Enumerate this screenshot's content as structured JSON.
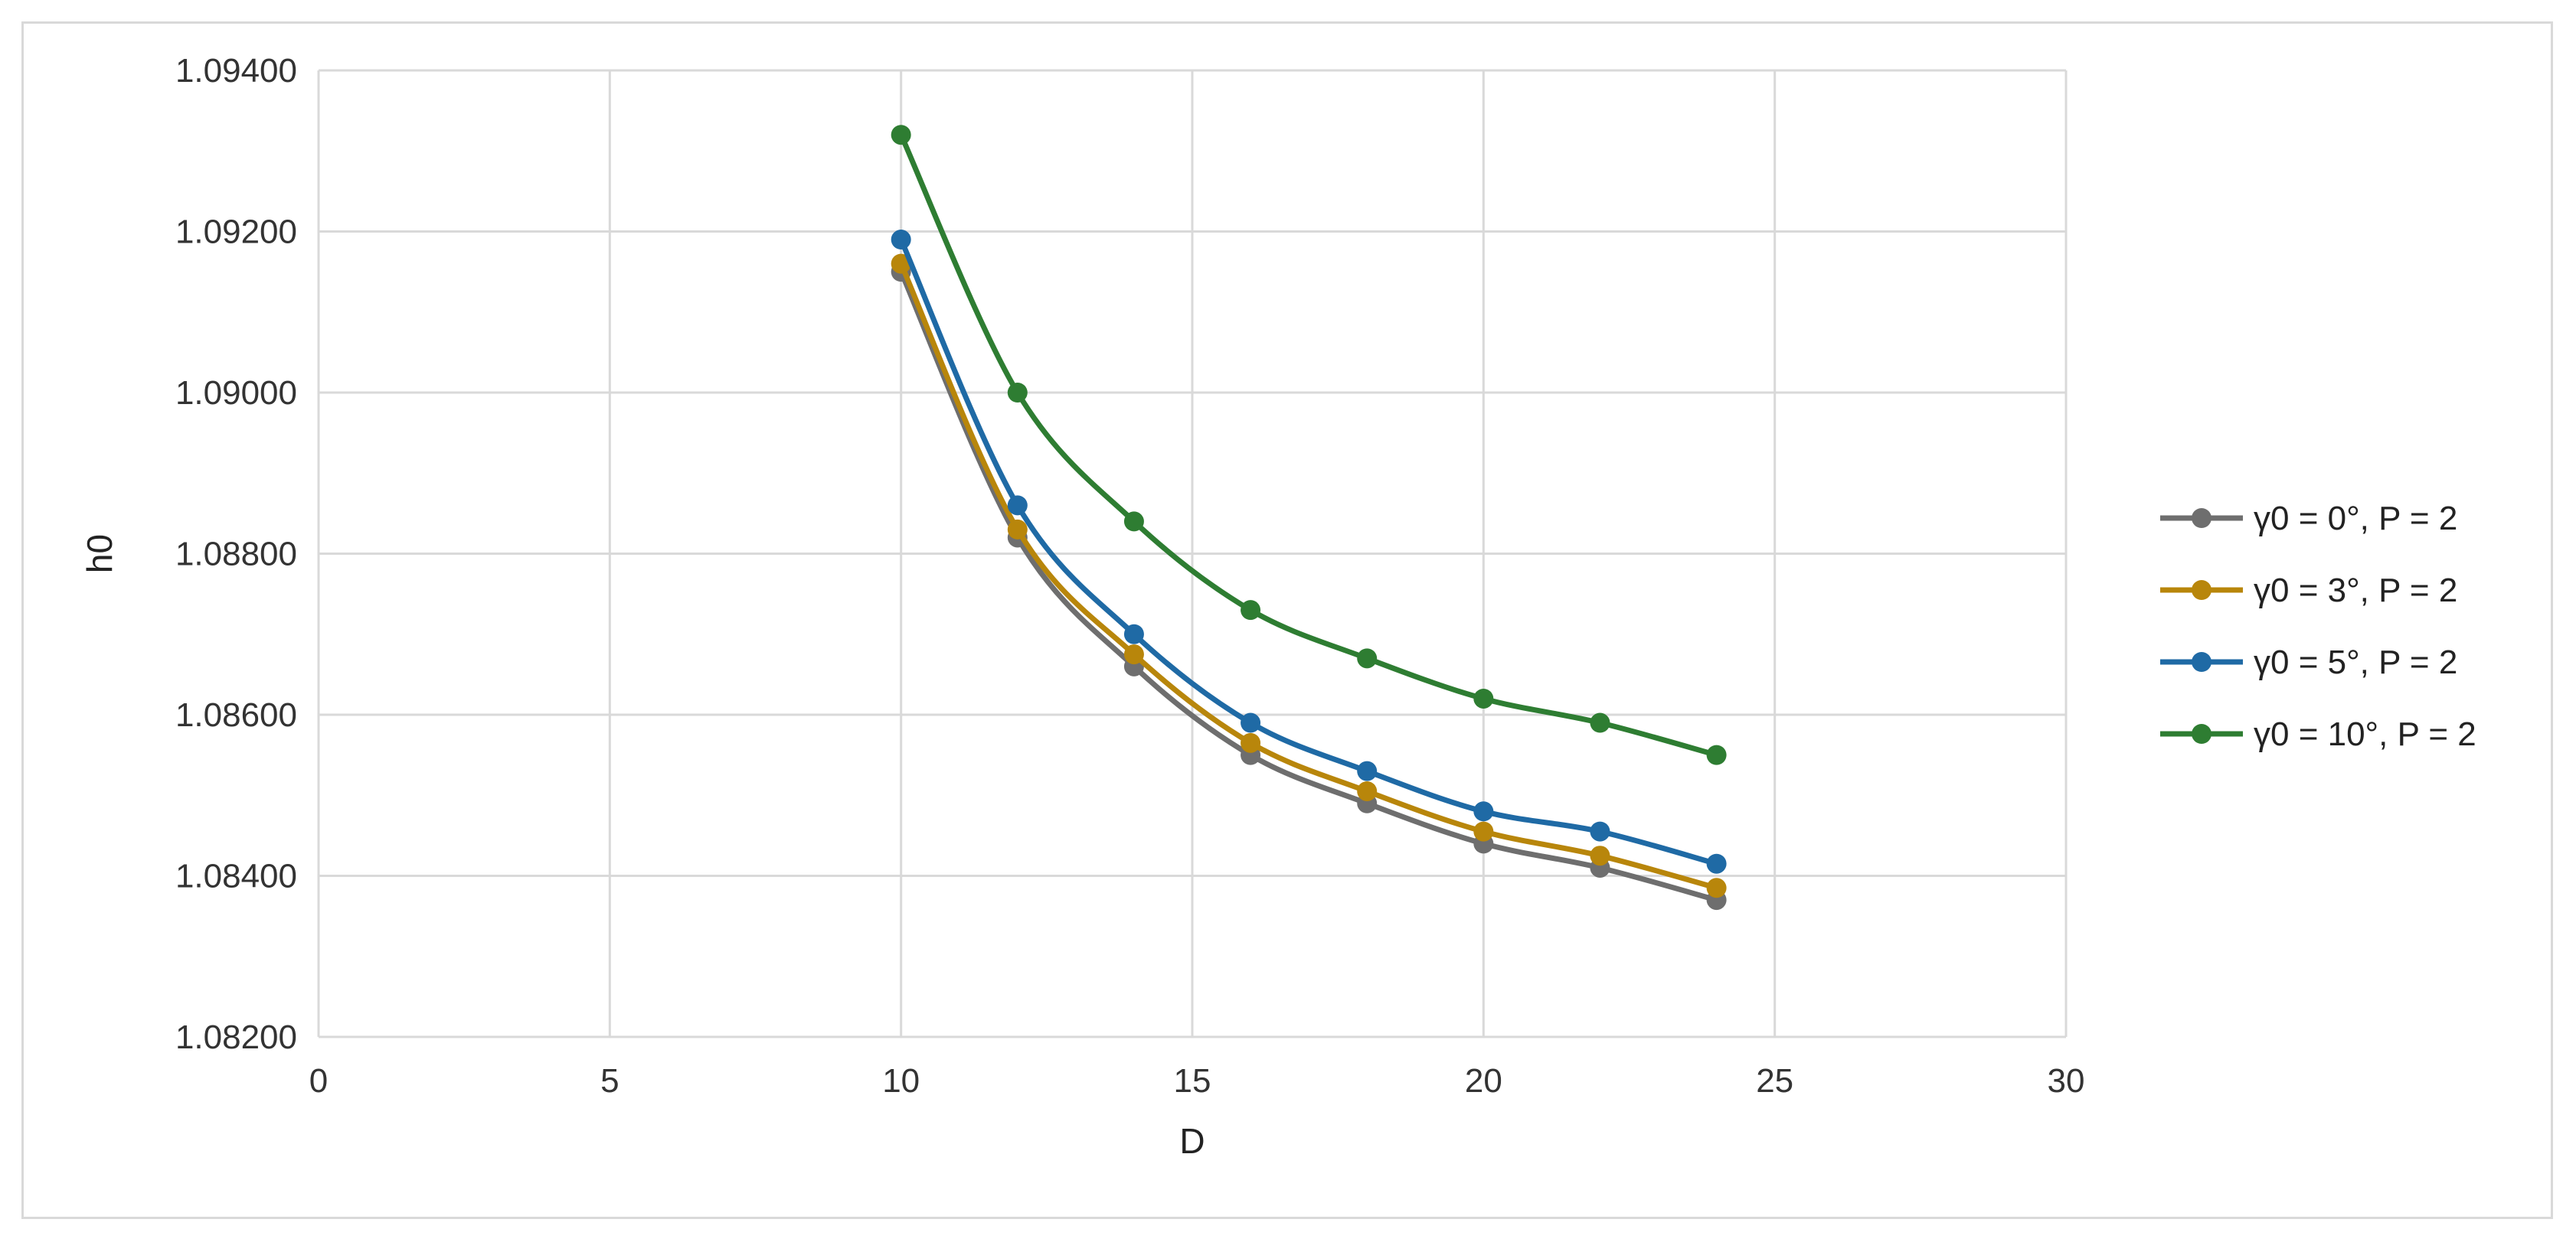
{
  "chart_data": {
    "type": "line",
    "title": "",
    "xlabel": "D",
    "ylabel": "h0",
    "xlim": [
      0,
      30
    ],
    "ylim": [
      1.082,
      1.094
    ],
    "x_ticks": [
      0,
      5,
      10,
      15,
      20,
      25,
      30
    ],
    "y_ticks": [
      1.082,
      1.084,
      1.086,
      1.088,
      1.09,
      1.092,
      1.094
    ],
    "x_tick_labels": [
      "0",
      "5",
      "10",
      "15",
      "20",
      "25",
      "30"
    ],
    "y_tick_labels": [
      "1.08200",
      "1.08400",
      "1.08600",
      "1.08800",
      "1.09000",
      "1.09200",
      "1.09400"
    ],
    "grid": true,
    "legend_position": "right",
    "smooth": true,
    "x": [
      10,
      12,
      14,
      16,
      18,
      20,
      22,
      24
    ],
    "series": [
      {
        "name": "γ0 = 0°, P = 2",
        "color": "#6e6e6e",
        "values": [
          1.0915,
          1.0882,
          1.0866,
          1.0855,
          1.0849,
          1.0844,
          1.0841,
          1.0837
        ]
      },
      {
        "name": "γ0 = 3°, P = 2",
        "color": "#b8860b",
        "values": [
          1.0916,
          1.0883,
          1.08675,
          1.08565,
          1.08505,
          1.08455,
          1.08425,
          1.08385
        ]
      },
      {
        "name": "γ0 = 5°, P = 2",
        "color": "#1f6aa5",
        "values": [
          1.0919,
          1.0886,
          1.087,
          1.0859,
          1.0853,
          1.0848,
          1.08455,
          1.08415
        ]
      },
      {
        "name": "γ0 = 10°, P = 2",
        "color": "#2e7d32",
        "values": [
          1.0932,
          1.09,
          1.0884,
          1.0873,
          1.0867,
          1.0862,
          1.0859,
          1.0855
        ]
      }
    ]
  }
}
